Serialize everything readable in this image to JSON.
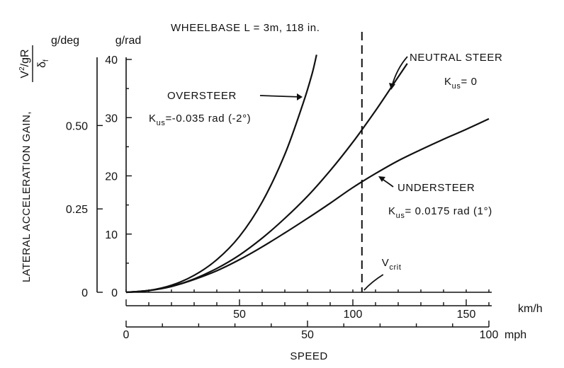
{
  "chart_data": {
    "type": "line",
    "title": "WHEELBASE  L = 3m, 118 in.",
    "xlabel": "SPEED",
    "ylabel": {
      "main": "LATERAL ACCELERATION GAIN,",
      "numerator_v": "V",
      "numerator_sup": "2",
      "numerator_rest": "/gR",
      "denominator": "δ",
      "denominator_sub": "f"
    },
    "x_axis_kmh": {
      "unit": "km/h",
      "range": [
        0,
        160
      ],
      "ticks": [
        50,
        100,
        150
      ]
    },
    "x_axis_mph": {
      "unit": "mph",
      "range": [
        0,
        100
      ],
      "ticks": [
        0,
        50,
        100
      ]
    },
    "y_axis_rad": {
      "unit": "g/rad",
      "range": [
        0,
        40
      ],
      "ticks": [
        0,
        10,
        20,
        30,
        40
      ]
    },
    "y_axis_deg": {
      "unit": "g/deg",
      "range": [
        0,
        0.698
      ],
      "ticks": [
        "0",
        "0.25",
        "0.50"
      ],
      "tick_values": [
        0,
        0.25,
        0.5
      ]
    },
    "series": [
      {
        "name": "OVERSTEER",
        "formula": "K_us = -0.035 rad (-2°)",
        "x_kmh": [
          0,
          10,
          20,
          30,
          40,
          50,
          60,
          70,
          78,
          82,
          84
        ],
        "y": [
          0,
          0.3,
          1.2,
          2.9,
          5.6,
          9.6,
          15.5,
          23.7,
          32.4,
          37.5,
          40.8
        ]
      },
      {
        "name": "NEUTRAL STEER",
        "formula": "K_us = 0",
        "x_kmh": [
          0,
          10,
          20,
          30,
          40,
          50,
          60,
          70,
          80,
          90,
          100,
          110,
          120,
          124
        ],
        "y": [
          0,
          0.3,
          1.0,
          2.3,
          4.1,
          6.4,
          9.3,
          12.7,
          16.5,
          20.9,
          25.8,
          31.2,
          37.0,
          39.3
        ]
      },
      {
        "name": "UNDERSTEER",
        "formula": "K_us = 0.0175 rad (1°)",
        "x_kmh": [
          0,
          10,
          20,
          30,
          40,
          50,
          60,
          70,
          80,
          90,
          100,
          110,
          120,
          130,
          140,
          150,
          160
        ],
        "y": [
          0,
          0.3,
          1.0,
          2.2,
          3.7,
          5.6,
          7.8,
          10.2,
          12.7,
          15.3,
          18.0,
          20.4,
          22.6,
          24.5,
          26.3,
          28.0,
          29.8
        ]
      }
    ],
    "annotations": {
      "vcrit": {
        "label": "V",
        "label_sub": "crit",
        "x_kmh": 104
      },
      "oversteer_label": "OVERSTEER",
      "oversteer_formula_k": "K",
      "oversteer_formula_sub": "us",
      "oversteer_formula_rest": "=-0.035 rad (-2°)",
      "neutral_label": "NEUTRAL STEER",
      "neutral_formula_k": "K",
      "neutral_formula_sub": "us",
      "neutral_formula_rest": "= 0",
      "understeer_label": "UNDERSTEER",
      "understeer_formula_k": "K",
      "understeer_formula_sub": "us",
      "understeer_formula_rest": "= 0.0175 rad (1°)"
    },
    "grid": false
  }
}
